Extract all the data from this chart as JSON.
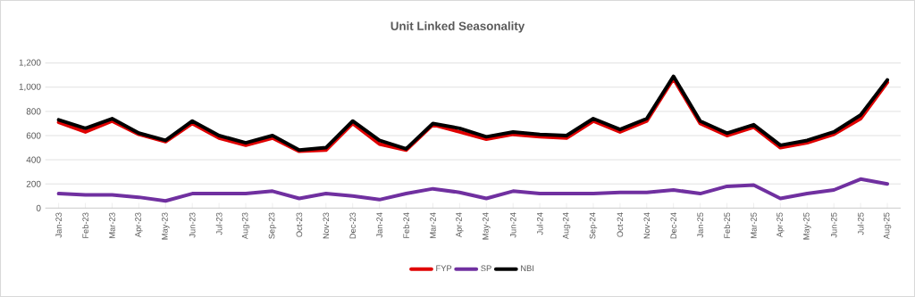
{
  "chart_data": {
    "type": "line",
    "title": "Unit Linked Seasonality",
    "categories": [
      "Jan-23",
      "Feb-23",
      "Mar-23",
      "Apr-23",
      "May-23",
      "Jun-23",
      "Jul-23",
      "Aug-23",
      "Sep-23",
      "Oct-23",
      "Nov-23",
      "Dec-23",
      "Jan-24",
      "Feb-24",
      "Mar-24",
      "Apr-24",
      "May-24",
      "Jun-24",
      "Jul-24",
      "Aug-24",
      "Sep-24",
      "Oct-24",
      "Nov-24",
      "Dec-24",
      "Jan-25",
      "Feb-25",
      "Mar-25",
      "Apr-25",
      "May-25",
      "Jun-25",
      "Jul-25",
      "Aug-25"
    ],
    "series": [
      {
        "name": "FYP",
        "color": "#e00000",
        "values": [
          710,
          630,
          720,
          610,
          550,
          700,
          580,
          520,
          580,
          470,
          480,
          700,
          530,
          480,
          690,
          630,
          570,
          610,
          590,
          580,
          720,
          630,
          720,
          1070,
          700,
          600,
          670,
          500,
          540,
          610,
          740,
          1040
        ]
      },
      {
        "name": "SP",
        "color": "#7030a0",
        "values": [
          120,
          110,
          110,
          90,
          60,
          120,
          120,
          120,
          140,
          80,
          120,
          100,
          70,
          120,
          160,
          130,
          80,
          140,
          120,
          120,
          120,
          130,
          130,
          150,
          120,
          180,
          190,
          80,
          120,
          150,
          240,
          200
        ]
      },
      {
        "name": "NBI",
        "color": "#000000",
        "values": [
          730,
          660,
          740,
          620,
          560,
          720,
          600,
          540,
          600,
          480,
          500,
          720,
          560,
          490,
          700,
          660,
          590,
          630,
          610,
          600,
          740,
          650,
          740,
          1090,
          720,
          620,
          690,
          520,
          560,
          630,
          770,
          1060
        ]
      }
    ],
    "ylim": [
      0,
      1200
    ],
    "yticks": [
      0,
      200,
      400,
      600,
      800,
      {
        "value": 1000,
        "label": "1,000"
      },
      {
        "value": 1200,
        "label": "1,200"
      }
    ],
    "grid": "y",
    "legend": "bottom",
    "marker": "none",
    "line_style": "solid"
  }
}
